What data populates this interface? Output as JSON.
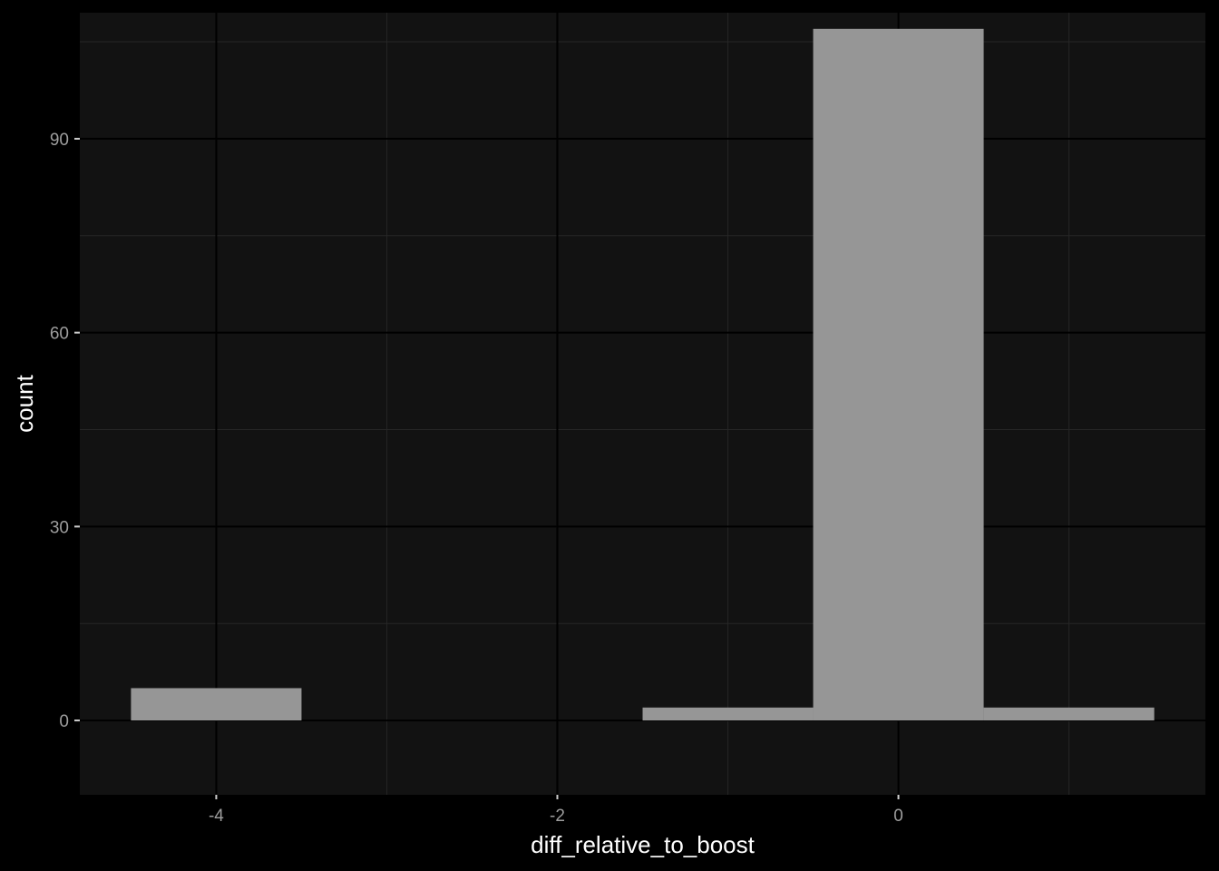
{
  "colors": {
    "background": "#000000",
    "panel": "#121212",
    "grid_major": "#000000",
    "grid_minor": "#262626",
    "bar_fill": "#969696",
    "tick_text": "#9e9e9e",
    "axis_title": "#ffffff",
    "tick_mark": "#cfcfcf"
  },
  "chart_data": {
    "type": "bar",
    "title": "",
    "xlabel": "diff_relative_to_boost",
    "ylabel": "count",
    "xlim": [
      -4.8,
      1.8
    ],
    "ylim": [
      -11.5,
      109.5
    ],
    "x_ticks": [
      -4,
      -2,
      0
    ],
    "x_tick_labels": [
      "-4",
      "-2",
      "0"
    ],
    "x_minor_ticks": [
      -3,
      -1,
      1
    ],
    "y_ticks": [
      0,
      30,
      60,
      90
    ],
    "y_tick_labels": [
      "0",
      "30",
      "60",
      "90"
    ],
    "y_minor_ticks": [
      15,
      45,
      75,
      105
    ],
    "bin_width": 1,
    "bins": [
      {
        "center": -4,
        "count": 5
      },
      {
        "center": -1,
        "count": 2
      },
      {
        "center": 0,
        "count": 107
      },
      {
        "center": 1,
        "count": 2
      }
    ],
    "grid": true,
    "legend": "none"
  }
}
